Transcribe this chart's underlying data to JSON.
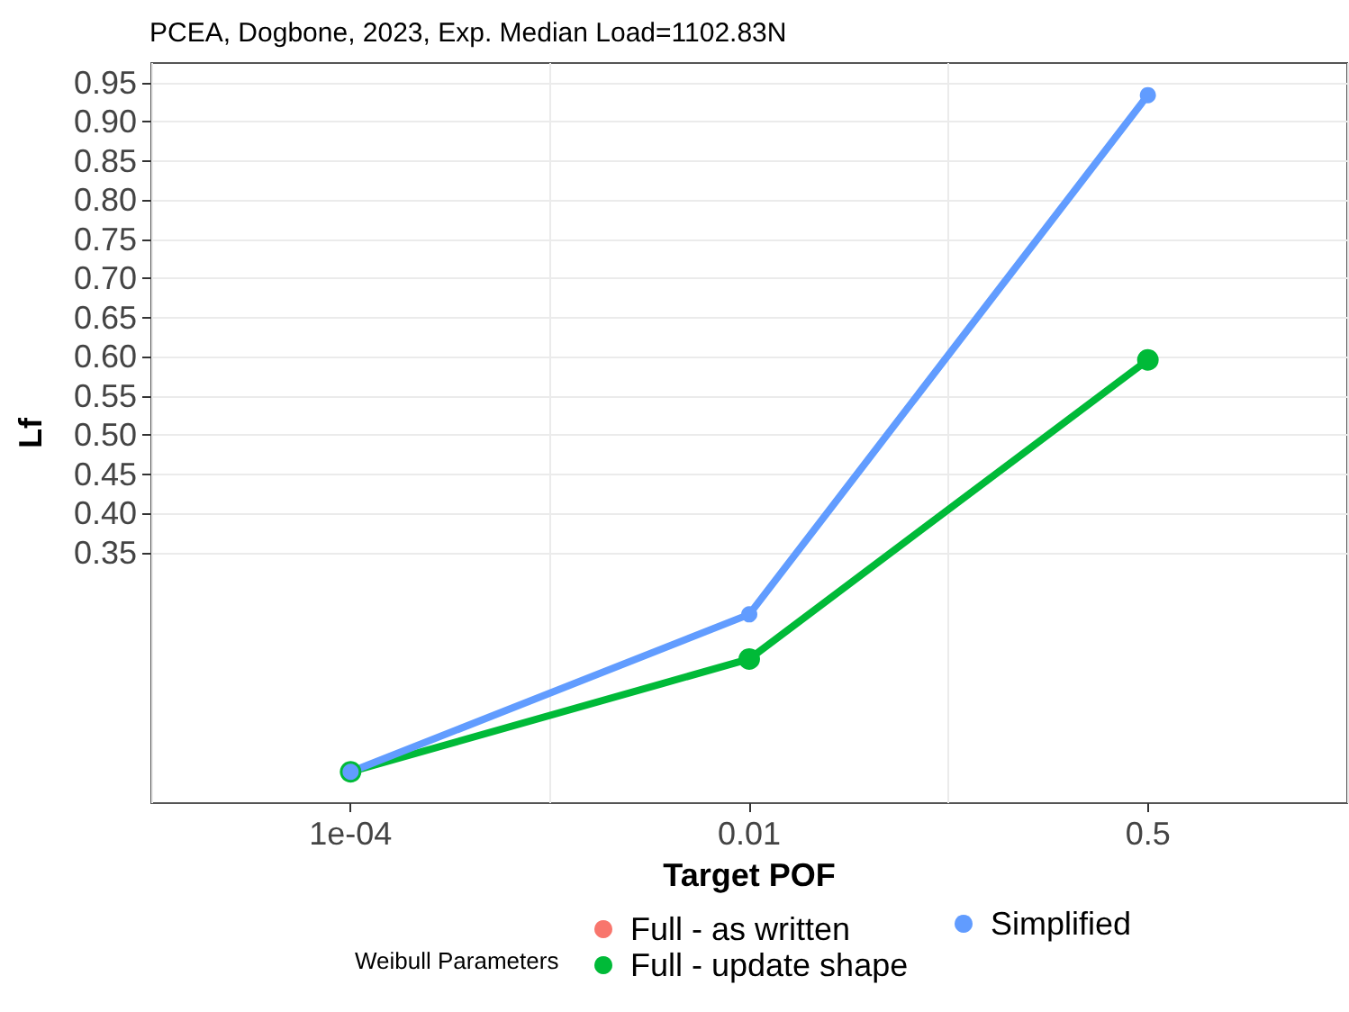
{
  "chart_data": {
    "type": "line",
    "title": "PCEA, Dogbone, 2023, Exp. Median Load=1102.83N",
    "xlabel": "Target POF",
    "ylabel": "Lf",
    "legend_title": "Weibull Parameters",
    "categories": [
      "1e-04",
      "0.01",
      "0.5"
    ],
    "series": [
      {
        "name": "Full - as written",
        "color": "#f8766d",
        "values": [
          null,
          null,
          null
        ]
      },
      {
        "name": "Full - update shape",
        "color": "#00ba38",
        "values": [
          0.07,
          0.214,
          0.596
        ]
      },
      {
        "name": "Simplified",
        "color": "#619cff",
        "values": [
          0.07,
          0.271,
          0.934
        ]
      }
    ],
    "ylim": [
      0.03,
      0.975
    ],
    "yticks": [
      {
        "value": 0.35,
        "label": "0.35"
      },
      {
        "value": 0.4,
        "label": "0.40"
      },
      {
        "value": 0.45,
        "label": "0.45"
      },
      {
        "value": 0.5,
        "label": "0.50"
      },
      {
        "value": 0.55,
        "label": "0.55"
      },
      {
        "value": 0.6,
        "label": "0.60"
      },
      {
        "value": 0.65,
        "label": "0.65"
      },
      {
        "value": 0.7,
        "label": "0.70"
      },
      {
        "value": 0.75,
        "label": "0.75"
      },
      {
        "value": 0.8,
        "label": "0.80"
      },
      {
        "value": 0.85,
        "label": "0.85"
      },
      {
        "value": 0.9,
        "label": "0.90"
      },
      {
        "value": 0.95,
        "label": "0.95"
      }
    ],
    "grid": true,
    "legend": "bottom",
    "marker": "circle",
    "line_style": "solid"
  }
}
